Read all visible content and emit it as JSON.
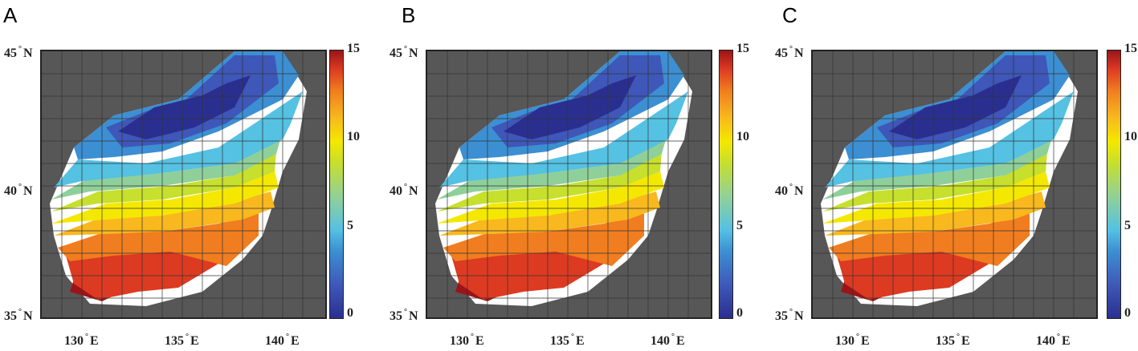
{
  "panels": [
    {
      "label": "A"
    },
    {
      "label": "B"
    },
    {
      "label": "C"
    }
  ],
  "axes": {
    "lat_labels": [
      {
        "value": "45",
        "hemi": "N"
      },
      {
        "value": "40",
        "hemi": "N"
      },
      {
        "value": "35",
        "hemi": "N"
      }
    ],
    "lon_labels": [
      {
        "value": "130",
        "hemi": "E"
      },
      {
        "value": "135",
        "hemi": "E"
      },
      {
        "value": "140",
        "hemi": "E"
      }
    ]
  },
  "colorbar": {
    "ticks": [
      "15",
      "10",
      "5",
      "0"
    ],
    "range": [
      0,
      15
    ],
    "colors": [
      "#2a2f8f",
      "#3c8fd2",
      "#55c1e3",
      "#c7df2d",
      "#f5e800",
      "#f07d1f",
      "#9a1418"
    ]
  },
  "colors": {
    "land": "#575757",
    "no_data": "#ffffff",
    "grid": "#333333"
  }
}
